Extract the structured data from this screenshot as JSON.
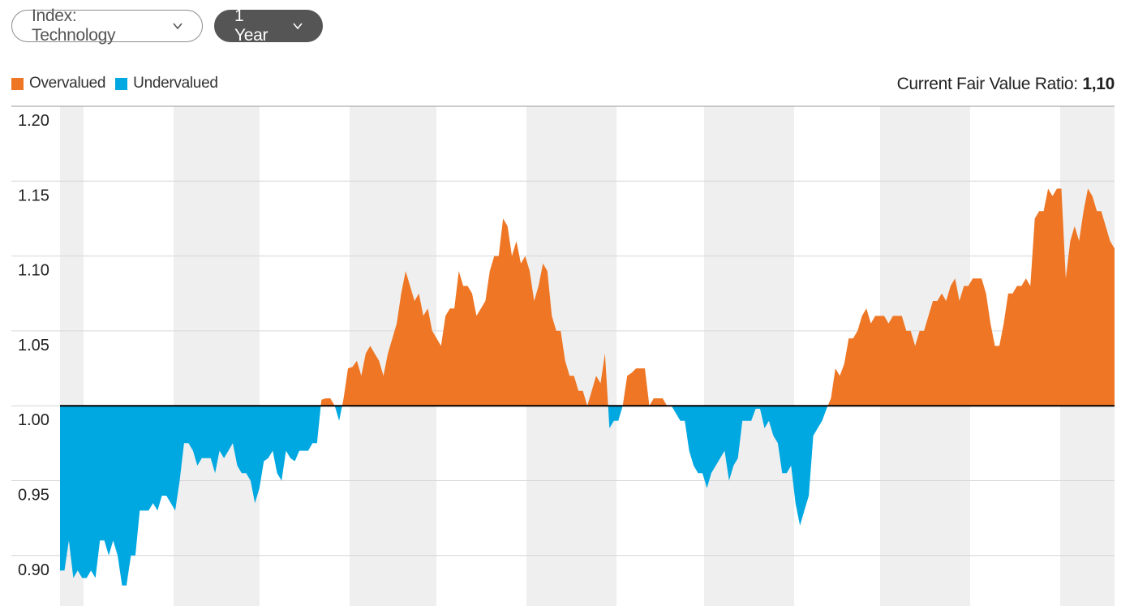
{
  "filters": {
    "index_label": "Index: Technology",
    "period_label": "1 Year"
  },
  "legend": {
    "overvalued": "Overvalued",
    "undervalued": "Undervalued"
  },
  "ratio": {
    "label": "Current Fair Value Ratio:",
    "value": "1,10"
  },
  "colors": {
    "overvalued": "#ee7624",
    "undervalued": "#00a8e1",
    "band": "#efefef",
    "grid": "#d6d6d6",
    "baseline": "#000000"
  },
  "icons": {
    "dropdown": "chevron-down-icon"
  },
  "chart_data": {
    "type": "area",
    "title": "",
    "xlabel": "",
    "ylabel": "",
    "ylim": [
      0.875,
      1.2
    ],
    "baseline": 1.0,
    "grid": true,
    "y_ticks": [
      "1.20",
      "1.15",
      "1.10",
      "1.05",
      "1.00",
      "0.95",
      "0.90"
    ],
    "series": [
      {
        "name": "Fair Value Ratio",
        "values": [
          0.89,
          0.89,
          0.91,
          0.885,
          0.89,
          0.885,
          0.885,
          0.89,
          0.885,
          0.91,
          0.91,
          0.9,
          0.91,
          0.9,
          0.88,
          0.88,
          0.9,
          0.9,
          0.93,
          0.93,
          0.93,
          0.935,
          0.93,
          0.94,
          0.94,
          0.935,
          0.93,
          0.95,
          0.975,
          0.975,
          0.97,
          0.96,
          0.965,
          0.965,
          0.965,
          0.955,
          0.97,
          0.965,
          0.97,
          0.975,
          0.96,
          0.955,
          0.955,
          0.95,
          0.935,
          0.945,
          0.963,
          0.965,
          0.97,
          0.955,
          0.95,
          0.97,
          0.965,
          0.963,
          0.97,
          0.97,
          0.97,
          0.975,
          0.975,
          1.004,
          1.005,
          1.005,
          1.0,
          0.99,
          1.005,
          1.025,
          1.026,
          1.03,
          1.02,
          1.035,
          1.04,
          1.035,
          1.03,
          1.02,
          1.035,
          1.045,
          1.055,
          1.075,
          1.09,
          1.08,
          1.07,
          1.075,
          1.06,
          1.065,
          1.05,
          1.045,
          1.04,
          1.06,
          1.065,
          1.065,
          1.09,
          1.08,
          1.08,
          1.075,
          1.06,
          1.065,
          1.07,
          1.09,
          1.1,
          1.1,
          1.125,
          1.12,
          1.1,
          1.11,
          1.095,
          1.1,
          1.09,
          1.07,
          1.08,
          1.095,
          1.09,
          1.06,
          1.05,
          1.05,
          1.03,
          1.02,
          1.02,
          1.01,
          1.01,
          1.0,
          1.01,
          1.02,
          1.015,
          1.035,
          0.985,
          0.99,
          0.99,
          1.0,
          1.02,
          1.022,
          1.025,
          1.025,
          1.025,
          1.0,
          1.005,
          1.005,
          1.005,
          1.0,
          1.0,
          0.995,
          0.99,
          0.99,
          0.97,
          0.96,
          0.955,
          0.955,
          0.945,
          0.955,
          0.96,
          0.965,
          0.97,
          0.95,
          0.96,
          0.965,
          0.99,
          0.99,
          0.99,
          0.998,
          0.998,
          0.985,
          0.99,
          0.98,
          0.975,
          0.955,
          0.955,
          0.96,
          0.935,
          0.92,
          0.93,
          0.94,
          0.98,
          0.985,
          0.99,
          0.998,
          1.005,
          1.025,
          1.02,
          1.028,
          1.045,
          1.045,
          1.05,
          1.06,
          1.065,
          1.055,
          1.06,
          1.06,
          1.06,
          1.055,
          1.06,
          1.06,
          1.06,
          1.05,
          1.05,
          1.04,
          1.05,
          1.05,
          1.06,
          1.07,
          1.07,
          1.075,
          1.07,
          1.08,
          1.085,
          1.07,
          1.08,
          1.08,
          1.085,
          1.085,
          1.085,
          1.075,
          1.055,
          1.04,
          1.04,
          1.055,
          1.075,
          1.075,
          1.08,
          1.08,
          1.085,
          1.08,
          1.125,
          1.13,
          1.13,
          1.145,
          1.14,
          1.145,
          1.145,
          1.085,
          1.11,
          1.12,
          1.11,
          1.13,
          1.145,
          1.14,
          1.13,
          1.13,
          1.12,
          1.11,
          1.105
        ]
      }
    ]
  }
}
